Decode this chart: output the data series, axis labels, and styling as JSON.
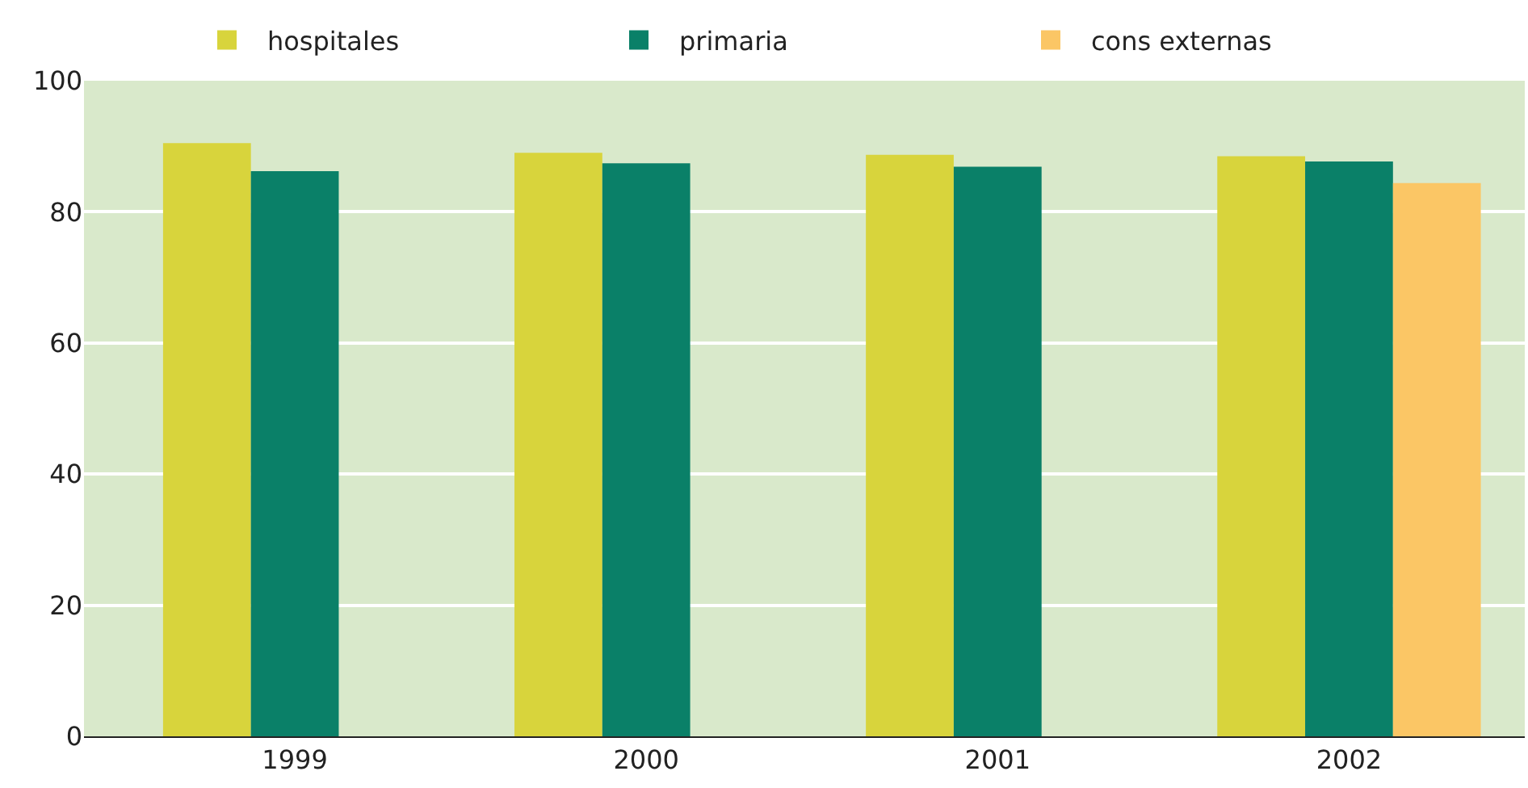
{
  "chart_data": {
    "type": "bar",
    "categories": [
      "1999",
      "2000",
      "2001",
      "2002"
    ],
    "series": [
      {
        "name": "hospitales",
        "color": "#d8d43c",
        "values": [
          90.5,
          89.0,
          88.7,
          88.5
        ]
      },
      {
        "name": "primaria",
        "color": "#0a8068",
        "values": [
          86.2,
          87.4,
          86.9,
          87.7
        ]
      },
      {
        "name": "cons externas",
        "color": "#fbc665",
        "values": [
          null,
          null,
          null,
          84.4
        ]
      }
    ],
    "ylim": [
      0,
      100
    ],
    "yticks": [
      0,
      20,
      40,
      60,
      80,
      100
    ],
    "grid": "y",
    "legend": "top"
  }
}
